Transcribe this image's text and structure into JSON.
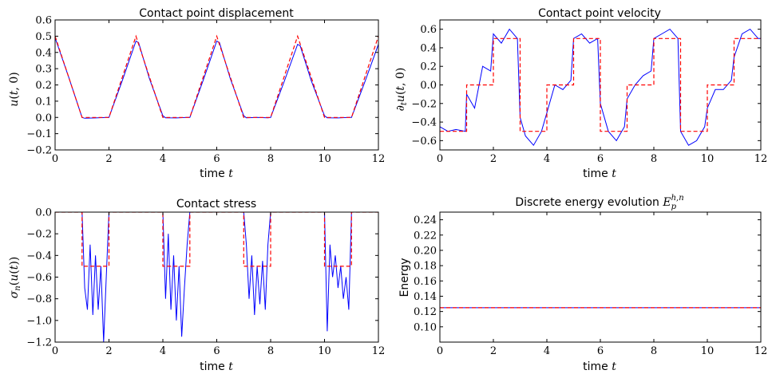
{
  "colors": {
    "numerical": "#0000ff",
    "reference": "#ff0000"
  },
  "chart_data": [
    {
      "type": "line",
      "title": "Contact point displacement",
      "xlabel": "time t",
      "ylabel": "u(t,0)",
      "xlim": [
        0,
        12
      ],
      "ylim": [
        -0.2,
        0.6
      ],
      "xticks": [
        0,
        2,
        4,
        6,
        8,
        10,
        12
      ],
      "yticks": [
        -0.2,
        -0.1,
        0.0,
        0.1,
        0.2,
        0.3,
        0.4,
        0.5,
        0.6
      ],
      "ytick_labels": [
        "−0.2",
        "−0.1",
        "0.0",
        "0.1",
        "0.2",
        "0.3",
        "0.4",
        "0.5",
        "0.6"
      ],
      "series": [
        {
          "style": "solid",
          "color": "#0000ff",
          "x": [
            0,
            0.5,
            1.0,
            1.1,
            1.5,
            1.9,
            2.0,
            2.5,
            3.0,
            3.1,
            3.5,
            4.0,
            4.1,
            4.5,
            4.9,
            5.0,
            5.5,
            6.0,
            6.1,
            6.5,
            7.0,
            7.1,
            7.5,
            7.9,
            8.0,
            8.5,
            9.0,
            9.1,
            9.5,
            10.0,
            10.1,
            10.5,
            10.9,
            11.0,
            11.5,
            12.0
          ],
          "y": [
            0.49,
            0.25,
            0.0,
            -0.005,
            -0.003,
            0.0,
            0.0,
            0.23,
            0.47,
            0.46,
            0.24,
            0.01,
            -0.002,
            -0.003,
            0.0,
            0.0,
            0.23,
            0.47,
            0.46,
            0.24,
            0.01,
            -0.002,
            0.0,
            -0.002,
            0.0,
            0.22,
            0.45,
            0.44,
            0.23,
            0.01,
            -0.002,
            -0.003,
            0.0,
            0.0,
            0.22,
            0.45
          ]
        },
        {
          "style": "dashed",
          "color": "#ff0000",
          "x": [
            0,
            1,
            2,
            3,
            4,
            5,
            6,
            7,
            8,
            9,
            10,
            11,
            12
          ],
          "y": [
            0.5,
            0.0,
            0.0,
            0.5,
            0.0,
            0.0,
            0.5,
            0.0,
            0.0,
            0.5,
            0.0,
            0.0,
            0.5
          ]
        }
      ]
    },
    {
      "type": "line",
      "title": "Contact point velocity",
      "xlabel": "time t",
      "ylabel": "∂t u(t,0)",
      "xlim": [
        0,
        12
      ],
      "ylim": [
        -0.7,
        0.7
      ],
      "xticks": [
        0,
        2,
        4,
        6,
        8,
        10,
        12
      ],
      "yticks": [
        -0.6,
        -0.4,
        -0.2,
        0.0,
        0.2,
        0.4,
        0.6
      ],
      "ytick_labels": [
        "−0.6",
        "−0.4",
        "−0.2",
        "0.0",
        "0.2",
        "0.4",
        "0.6"
      ],
      "series": [
        {
          "style": "solid",
          "color": "#0000ff",
          "x": [
            0,
            0.3,
            0.6,
            0.95,
            1.0,
            1.3,
            1.6,
            1.9,
            2.0,
            2.3,
            2.6,
            2.9,
            3.0,
            3.2,
            3.5,
            3.8,
            4.0,
            4.3,
            4.6,
            4.9,
            5.0,
            5.3,
            5.6,
            5.9,
            6.0,
            6.3,
            6.6,
            6.9,
            7.0,
            7.3,
            7.6,
            7.9,
            8.0,
            8.3,
            8.6,
            8.9,
            9.0,
            9.3,
            9.6,
            9.9,
            10.0,
            10.3,
            10.6,
            10.9,
            11.0,
            11.3,
            11.6,
            11.9,
            12.0
          ],
          "y": [
            -0.45,
            -0.5,
            -0.48,
            -0.5,
            -0.1,
            -0.25,
            0.2,
            0.15,
            0.55,
            0.45,
            0.6,
            0.5,
            -0.35,
            -0.55,
            -0.65,
            -0.5,
            -0.3,
            0.0,
            -0.05,
            0.05,
            0.5,
            0.55,
            0.45,
            0.5,
            -0.2,
            -0.5,
            -0.6,
            -0.45,
            -0.15,
            0.0,
            0.1,
            0.15,
            0.5,
            0.55,
            0.6,
            0.5,
            -0.5,
            -0.65,
            -0.6,
            -0.45,
            -0.25,
            -0.05,
            -0.05,
            0.05,
            0.3,
            0.55,
            0.6,
            0.5,
            0.5
          ]
        },
        {
          "style": "dashed",
          "color": "#ff0000",
          "x": [
            0,
            1,
            1,
            2,
            2,
            3,
            3,
            4,
            4,
            5,
            5,
            6,
            6,
            7,
            7,
            8,
            8,
            9,
            9,
            10,
            10,
            11,
            11,
            12
          ],
          "y": [
            -0.5,
            -0.5,
            0.0,
            0.0,
            0.5,
            0.5,
            -0.5,
            -0.5,
            0.0,
            0.0,
            0.5,
            0.5,
            -0.5,
            -0.5,
            0.0,
            0.0,
            0.5,
            0.5,
            -0.5,
            -0.5,
            0.0,
            0.0,
            0.5,
            0.5
          ]
        }
      ]
    },
    {
      "type": "line",
      "title": "Contact stress",
      "xlabel": "time t",
      "ylabel": "σn(u(t))",
      "xlim": [
        0,
        12
      ],
      "ylim": [
        -1.2,
        0.0
      ],
      "xticks": [
        0,
        2,
        4,
        6,
        8,
        10,
        12
      ],
      "yticks": [
        -1.2,
        -1.0,
        -0.8,
        -0.6,
        -0.4,
        -0.2,
        0.0
      ],
      "ytick_labels": [
        "−1.2",
        "−1.0",
        "−0.8",
        "−0.6",
        "−0.4",
        "−0.2",
        "0.0"
      ],
      "series": [
        {
          "style": "solid",
          "color": "#0000ff",
          "x": [
            0,
            1.0,
            1.1,
            1.2,
            1.3,
            1.4,
            1.5,
            1.6,
            1.7,
            1.8,
            1.9,
            2.0,
            4.0,
            4.1,
            4.2,
            4.3,
            4.4,
            4.5,
            4.6,
            4.7,
            4.8,
            4.9,
            5.0,
            7.0,
            7.1,
            7.2,
            7.3,
            7.4,
            7.5,
            7.6,
            7.7,
            7.8,
            7.9,
            8.0,
            10.0,
            10.1,
            10.2,
            10.3,
            10.4,
            10.5,
            10.6,
            10.7,
            10.8,
            10.9,
            11.0,
            12.0
          ],
          "y": [
            0.0,
            0.0,
            -0.7,
            -0.9,
            -0.3,
            -0.95,
            -0.4,
            -0.9,
            -0.5,
            -1.2,
            -0.6,
            0.0,
            0.0,
            -0.8,
            -0.2,
            -0.9,
            -0.4,
            -1.0,
            -0.5,
            -1.15,
            -0.7,
            -0.3,
            0.0,
            0.0,
            -0.3,
            -0.8,
            -0.4,
            -0.95,
            -0.5,
            -0.85,
            -0.45,
            -0.9,
            -0.3,
            0.0,
            0.0,
            -1.1,
            -0.3,
            -0.6,
            -0.4,
            -0.7,
            -0.5,
            -0.8,
            -0.6,
            -0.9,
            0.0,
            0.0
          ]
        },
        {
          "style": "dashed",
          "color": "#ff0000",
          "x": [
            0,
            1,
            1,
            2,
            2,
            4,
            4,
            5,
            5,
            7,
            7,
            8,
            8,
            10,
            10,
            11,
            11,
            12
          ],
          "y": [
            0.0,
            0.0,
            -0.5,
            -0.5,
            0.0,
            0.0,
            -0.5,
            -0.5,
            0.0,
            0.0,
            -0.5,
            -0.5,
            0.0,
            0.0,
            -0.5,
            -0.5,
            0.0,
            0.0
          ]
        }
      ]
    },
    {
      "type": "line",
      "title": "Discrete energy evolution",
      "title_math": "E_p^{h,n}",
      "xlabel": "time t",
      "ylabel": "Energy",
      "xlim": [
        0,
        12
      ],
      "ylim": [
        0.08,
        0.25
      ],
      "xticks": [
        0,
        2,
        4,
        6,
        8,
        10,
        12
      ],
      "yticks": [
        0.1,
        0.12,
        0.14,
        0.16,
        0.18,
        0.2,
        0.22,
        0.24
      ],
      "ytick_labels": [
        "0.10",
        "0.12",
        "0.14",
        "0.16",
        "0.18",
        "0.20",
        "0.22",
        "0.24"
      ],
      "series": [
        {
          "style": "solid",
          "color": "#0000ff",
          "x": [
            0,
            12
          ],
          "y": [
            0.125,
            0.125
          ]
        },
        {
          "style": "dashed",
          "color": "#ff0000",
          "x": [
            0,
            12
          ],
          "y": [
            0.125,
            0.125
          ]
        }
      ]
    }
  ]
}
